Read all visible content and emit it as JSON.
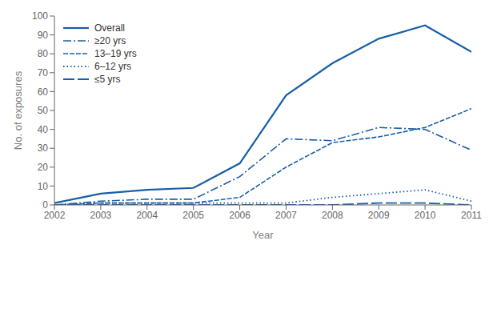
{
  "chart_data": {
    "type": "line",
    "xlabel": "Year",
    "ylabel": "No. of exposures",
    "x": [
      2002,
      2003,
      2004,
      2005,
      2006,
      2007,
      2008,
      2009,
      2010,
      2011
    ],
    "series": [
      {
        "name": "Overall",
        "color": "#1a5fa8",
        "line_style": "solid",
        "values": [
          1,
          6,
          8,
          9,
          22,
          58,
          75,
          88,
          95,
          81
        ]
      },
      {
        "name": "≥20 yrs",
        "color": "#1a5fa8",
        "line_style": "dashdot",
        "values": [
          0,
          2,
          3,
          3,
          15,
          35,
          34,
          41,
          40,
          29
        ]
      },
      {
        "name": "13–19 yrs",
        "color": "#1a5fa8",
        "line_style": "dashed",
        "values": [
          0,
          1,
          1,
          1,
          4,
          20,
          33,
          36,
          41,
          51
        ]
      },
      {
        "name": "6–12 yrs",
        "color": "#1a5fa8",
        "line_style": "dotted",
        "values": [
          0,
          1,
          1,
          1,
          1,
          1,
          4,
          6,
          8,
          2
        ]
      },
      {
        "name": "≤5 yrs",
        "color": "#1a5fa8",
        "line_style": "longdash",
        "values": [
          0,
          0,
          0,
          0,
          0,
          0,
          0,
          1,
          1,
          0
        ]
      }
    ],
    "xlim": [
      2002,
      2011
    ],
    "xticks": [
      2002,
      2003,
      2004,
      2005,
      2006,
      2007,
      2008,
      2009,
      2010,
      2011
    ],
    "ylim": [
      0,
      100
    ],
    "yticks": [
      0,
      10,
      20,
      30,
      40,
      50,
      60,
      70,
      80,
      90,
      100
    ],
    "grid": false,
    "legend": "upper left"
  }
}
